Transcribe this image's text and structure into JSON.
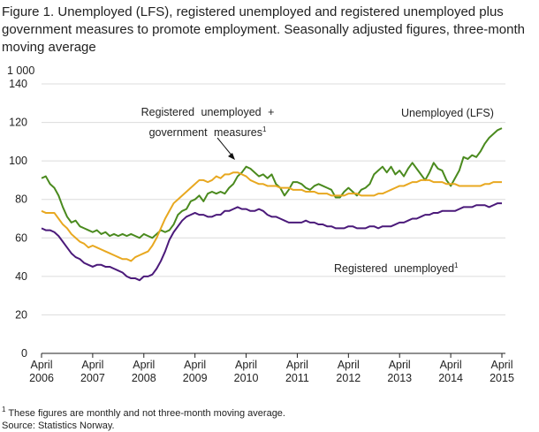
{
  "chart_data": {
    "type": "line",
    "title": "Figure 1. Unemployed (LFS), registered unemployed and registered unemployed plus government measures to promote employment. Seasonally adjusted figures, three-month moving average",
    "y_unit": "1 000",
    "categories": [
      "April 2006",
      null,
      null,
      null,
      null,
      null,
      null,
      null,
      null,
      null,
      null,
      null,
      "April 2007",
      null,
      null,
      null,
      null,
      null,
      null,
      null,
      null,
      null,
      null,
      null,
      "April 2008",
      null,
      null,
      null,
      null,
      null,
      null,
      null,
      null,
      null,
      null,
      null,
      "April 2009",
      null,
      null,
      null,
      null,
      null,
      null,
      null,
      null,
      null,
      null,
      null,
      "April 2010",
      null,
      null,
      null,
      null,
      null,
      null,
      null,
      null,
      null,
      null,
      null,
      "April 2011",
      null,
      null,
      null,
      null,
      null,
      null,
      null,
      null,
      null,
      null,
      null,
      "April 2012",
      null,
      null,
      null,
      null,
      null,
      null,
      null,
      null,
      null,
      null,
      null,
      "April 2013",
      null,
      null,
      null,
      null,
      null,
      null,
      null,
      null,
      null,
      null,
      null,
      "April 2014",
      null,
      null,
      null,
      null,
      null,
      null,
      null,
      null,
      null,
      null,
      null,
      "April 2015"
    ],
    "series": [
      {
        "name": "Unemployed (LFS)",
        "color": "#4a8a1e",
        "values": [
          91,
          92,
          88,
          86,
          82,
          76,
          71,
          68,
          69,
          66,
          65,
          64,
          63,
          64,
          62,
          63,
          61,
          62,
          61,
          62,
          61,
          62,
          61,
          60,
          62,
          61,
          60,
          62,
          64,
          63,
          64,
          67,
          72,
          74,
          75,
          79,
          80,
          82,
          79,
          83,
          84,
          83,
          84,
          83,
          86,
          88,
          92,
          94,
          97,
          96,
          94,
          92,
          93,
          91,
          93,
          88,
          86,
          82,
          85,
          89,
          89,
          88,
          86,
          85,
          87,
          88,
          87,
          86,
          85,
          81,
          81,
          84,
          86,
          84,
          82,
          85,
          86,
          88,
          93,
          95,
          97,
          94,
          97,
          93,
          95,
          92,
          96,
          99,
          96,
          93,
          90,
          94,
          99,
          96,
          95,
          90,
          87,
          91,
          95,
          102,
          101,
          103,
          102,
          105,
          109,
          112,
          114,
          116,
          117
        ]
      },
      {
        "name": "Registered unemployed + government measures",
        "note_marker": "1",
        "color": "#e8a820",
        "values": [
          74,
          73,
          73,
          73,
          70,
          67,
          65,
          62,
          60,
          58,
          57,
          55,
          56,
          55,
          54,
          53,
          52,
          51,
          50,
          49,
          49,
          48,
          50,
          51,
          52,
          53,
          56,
          60,
          65,
          70,
          74,
          78,
          80,
          82,
          84,
          86,
          88,
          90,
          90,
          89,
          90,
          92,
          91,
          93,
          93,
          94,
          94,
          93,
          92,
          90,
          89,
          88,
          88,
          87,
          87,
          87,
          86,
          86,
          86,
          85,
          85,
          85,
          84,
          84,
          84,
          83,
          83,
          83,
          82,
          82,
          82,
          82,
          83,
          83,
          83,
          82,
          82,
          82,
          82,
          83,
          83,
          84,
          85,
          86,
          87,
          87,
          88,
          89,
          89,
          90,
          90,
          90,
          89,
          89,
          89,
          88,
          88,
          88,
          87,
          87,
          87,
          87,
          87,
          87,
          88,
          88,
          89,
          89,
          89
        ]
      },
      {
        "name": "Registered unemployed",
        "note_marker": "1",
        "color": "#4b1a7a",
        "values": [
          65,
          64,
          64,
          63,
          61,
          58,
          55,
          52,
          50,
          49,
          47,
          46,
          45,
          46,
          46,
          45,
          45,
          44,
          43,
          42,
          40,
          39,
          39,
          38,
          40,
          40,
          41,
          44,
          48,
          53,
          59,
          63,
          66,
          69,
          71,
          72,
          73,
          72,
          72,
          71,
          71,
          72,
          72,
          74,
          74,
          75,
          76,
          75,
          75,
          74,
          74,
          75,
          74,
          72,
          71,
          71,
          70,
          69,
          68,
          68,
          68,
          68,
          69,
          68,
          68,
          67,
          67,
          66,
          66,
          65,
          65,
          65,
          66,
          66,
          65,
          65,
          65,
          66,
          66,
          65,
          66,
          66,
          66,
          67,
          68,
          68,
          69,
          70,
          70,
          71,
          72,
          72,
          73,
          73,
          74,
          74,
          74,
          74,
          75,
          76,
          76,
          76,
          77,
          77,
          77,
          76,
          77,
          78,
          78
        ]
      }
    ],
    "ylim": [
      0,
      140
    ],
    "yticks": [
      0,
      20,
      40,
      60,
      80,
      100,
      120,
      140
    ],
    "grid": true,
    "footnote": {
      "marker": "1",
      "text": "These figures are monthly and not three-month moving average."
    },
    "source": "Source: Statistics Norway."
  }
}
